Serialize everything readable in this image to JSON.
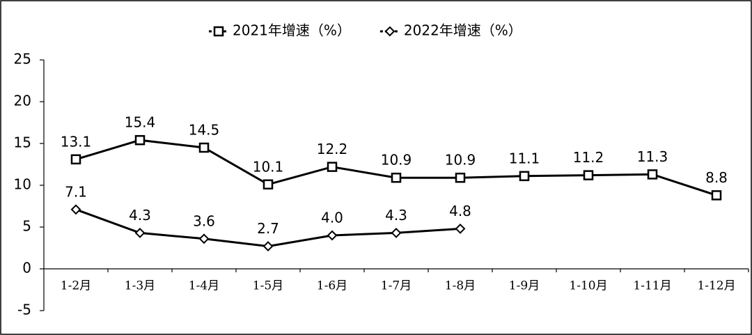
{
  "chart_data": {
    "type": "line",
    "categories": [
      "1-2月",
      "1-3月",
      "1-4月",
      "1-5月",
      "1-6月",
      "1-7月",
      "1-8月",
      "1-9月",
      "1-10月",
      "1-11月",
      "1-12月"
    ],
    "series": [
      {
        "name": "2021年增速（%）",
        "color": "#000000",
        "marker": "square",
        "values": [
          13.1,
          15.4,
          14.5,
          10.1,
          12.2,
          10.9,
          10.9,
          11.1,
          11.2,
          11.3,
          8.8
        ],
        "value_labels": [
          "13.1",
          "15.4",
          "14.5",
          "10.1",
          "12.2",
          "10.9",
          "10.9",
          "11.1",
          "11.2",
          "11.3",
          "8.8"
        ]
      },
      {
        "name": "2022年增速（%）",
        "color": "#000000",
        "marker": "diamond",
        "values": [
          7.1,
          4.3,
          3.6,
          2.7,
          4.0,
          4.3,
          4.8,
          null,
          null,
          null,
          null
        ],
        "value_labels": [
          "7.1",
          "4.3",
          "3.6",
          "2.7",
          "4.0",
          "4.3",
          "4.8",
          null,
          null,
          null,
          null
        ]
      }
    ],
    "ylim": [
      -5,
      25
    ],
    "yticks": [
      -5,
      0,
      5,
      10,
      15,
      20,
      25
    ],
    "grid": false,
    "legend": "top"
  }
}
